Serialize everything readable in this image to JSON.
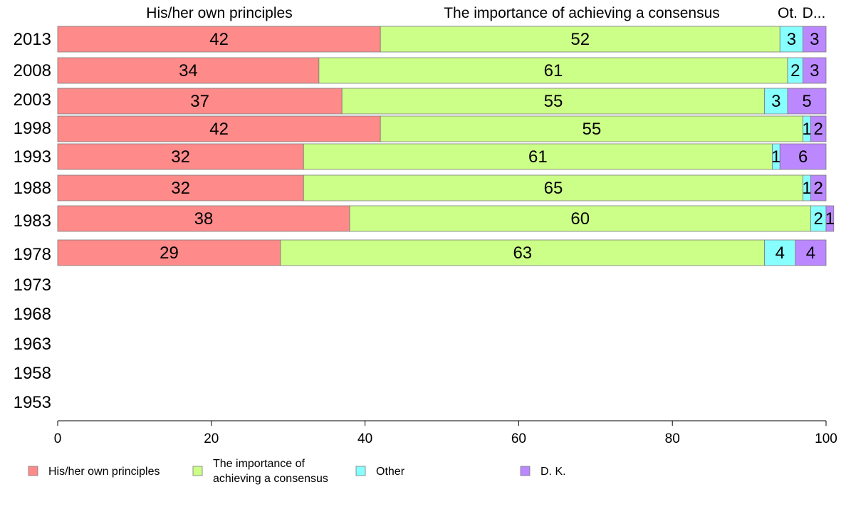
{
  "chart_data": {
    "type": "bar",
    "orientation": "horizontal",
    "stacked": true,
    "categories": [
      "2013",
      "2008",
      "2003",
      "1998",
      "1993",
      "1988",
      "1983",
      "1978",
      "1973",
      "1968",
      "1963",
      "1958",
      "1953"
    ],
    "series": [
      {
        "name": "His/her own principles",
        "color": "#ff8a8a",
        "values": [
          42,
          34,
          37,
          42,
          32,
          32,
          38,
          29,
          null,
          null,
          null,
          null,
          null
        ]
      },
      {
        "name": "The importance of achieving a consensus",
        "color": "#ccff88",
        "values": [
          52,
          61,
          55,
          55,
          61,
          65,
          60,
          63,
          null,
          null,
          null,
          null,
          null
        ]
      },
      {
        "name": "Other",
        "color": "#88ffff",
        "values": [
          3,
          2,
          3,
          1,
          1,
          1,
          2,
          4,
          null,
          null,
          null,
          null,
          null
        ]
      },
      {
        "name": "D. K.",
        "color": "#bb88ff",
        "values": [
          3,
          3,
          5,
          2,
          6,
          2,
          1,
          4,
          null,
          null,
          null,
          null,
          null
        ]
      }
    ],
    "top_labels": [
      "His/her own principles",
      "The importance of achieving a consensus",
      "Ot.",
      "D..."
    ],
    "legend_labels": [
      [
        "His/her own principles"
      ],
      [
        "The importance of",
        "achieving a consensus"
      ],
      [
        "Other"
      ],
      [
        "D. K."
      ]
    ],
    "xlim": [
      0,
      100
    ],
    "xticks": [
      0,
      20,
      40,
      60,
      80,
      100
    ],
    "grid": false,
    "legend_position": "bottom"
  }
}
